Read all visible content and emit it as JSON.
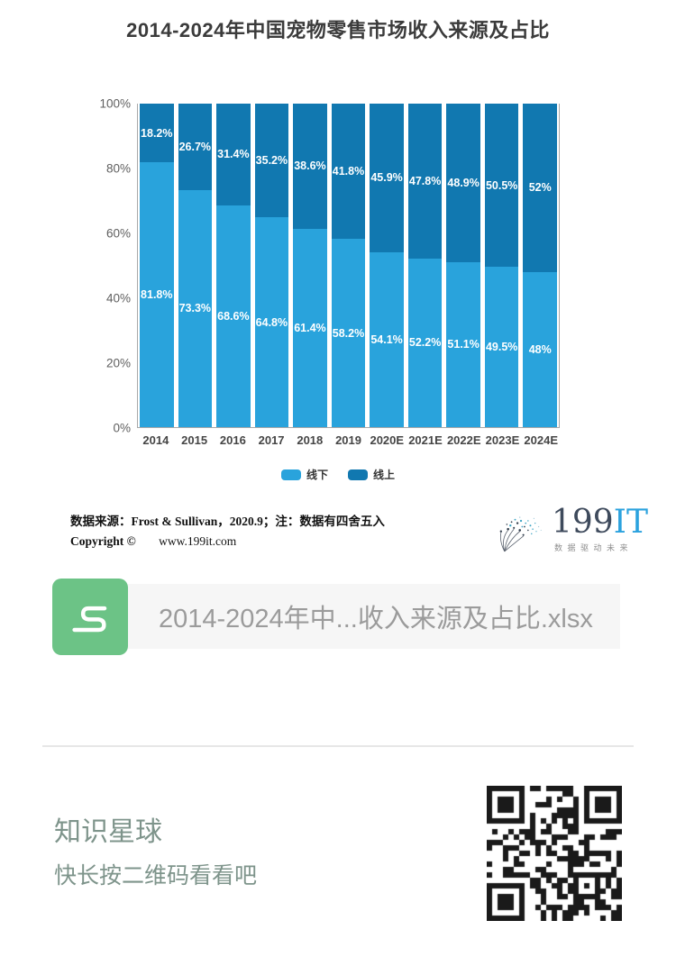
{
  "title": "2014-2024年中国宠物零售市场收入来源及占比",
  "chart_data": {
    "type": "bar",
    "stacked": true,
    "title": "2014-2024年中国宠物零售市场收入来源及占比",
    "categories": [
      "2014",
      "2015",
      "2016",
      "2017",
      "2018",
      "2019",
      "2020E",
      "2021E",
      "2022E",
      "2023E",
      "2024E"
    ],
    "series": [
      {
        "name": "线下",
        "color": "#29a3dc",
        "values": [
          81.8,
          73.3,
          68.6,
          64.8,
          61.4,
          58.2,
          54.1,
          52.2,
          51.1,
          49.5,
          48
        ]
      },
      {
        "name": "线上",
        "color": "#1178b0",
        "values": [
          18.2,
          26.7,
          31.4,
          35.2,
          38.6,
          41.8,
          45.9,
          47.8,
          48.9,
          50.5,
          52
        ]
      }
    ],
    "xlabel": "",
    "ylabel": "",
    "ylim": [
      0,
      100
    ],
    "yticks": [
      "0%",
      "20%",
      "40%",
      "60%",
      "80%",
      "100%"
    ],
    "grid": false,
    "legend_position": "bottom",
    "bar_label_format": "value + %"
  },
  "source": {
    "line1": "数据来源：Frost & Sullivan，2020.9；注：数据有四舍五入",
    "copyright_label": "Copyright ©",
    "copyright_url": "www.199it.com"
  },
  "logo": {
    "text_199": "199",
    "text_it": "IT",
    "tagline": "数据驱动未来",
    "color_199": "#3e4a5c",
    "color_it": "#2ba2de"
  },
  "attachment": {
    "filename": "2014-2024年中...收入来源及占比.xlsx",
    "icon": "spreadsheet-s-icon",
    "icon_color": "#6cc386"
  },
  "footer": {
    "title": "知识星球",
    "subtitle": "快长按二维码看看吧",
    "text_color": "#7e948b"
  }
}
